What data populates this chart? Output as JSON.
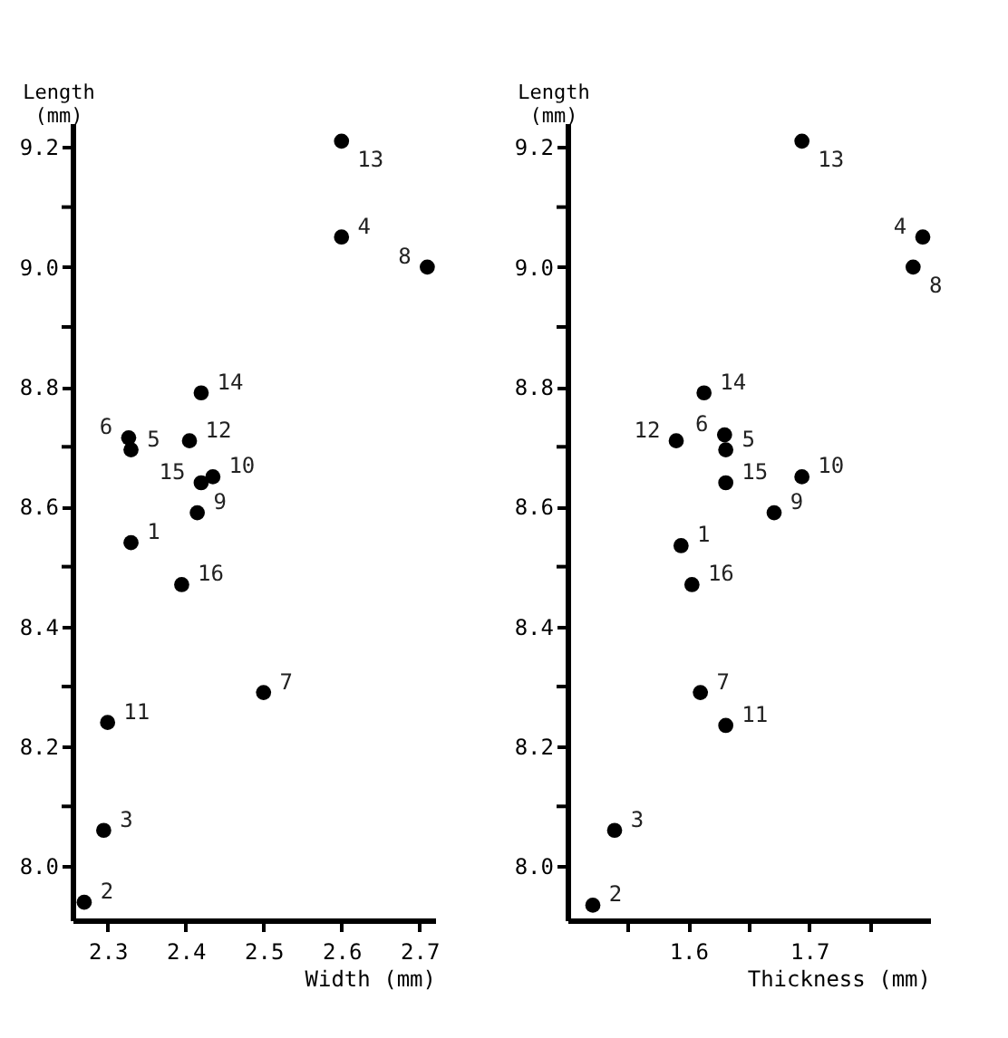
{
  "chart_data": [
    {
      "type": "scatter",
      "xlabel": "Width (mm)",
      "ylabel": "Length (mm)",
      "marker": "circle",
      "grid": false,
      "legend": false,
      "xlim": [
        2.255,
        2.72
      ],
      "xticks": [
        2.3,
        2.4,
        2.5,
        2.6,
        2.7
      ],
      "ylim": [
        7.91,
        9.24
      ],
      "yticks": [
        {
          "value": 8.0,
          "label": "8.0"
        },
        {
          "value": 8.1,
          "label": null
        },
        8.2,
        {
          "value": 8.3,
          "label": null
        },
        8.4,
        {
          "value": 8.5,
          "label": null
        },
        8.6,
        {
          "value": 8.7,
          "label": null
        },
        8.8,
        {
          "value": 8.9,
          "label": null
        },
        {
          "value": 9.0,
          "label": "9.0"
        },
        {
          "value": 9.1,
          "label": null
        },
        9.2
      ],
      "series": [
        {
          "color": "#000000",
          "x": [
            2.33,
            2.27,
            2.295,
            2.6,
            2.33,
            2.327,
            2.5,
            2.71,
            2.415,
            2.435,
            2.3,
            2.405,
            2.6,
            2.42,
            2.42,
            2.395
          ],
          "values": [
            8.54,
            7.94,
            8.06,
            9.05,
            8.695,
            8.715,
            8.29,
            9.0,
            8.59,
            8.65,
            8.24,
            8.71,
            9.21,
            8.79,
            8.64,
            8.47
          ]
        }
      ],
      "annotations": [
        {
          "text": "1",
          "x": 2.33,
          "y": 8.54
        },
        {
          "text": "2",
          "x": 2.27,
          "y": 7.94
        },
        {
          "text": "3",
          "x": 2.295,
          "y": 8.06
        },
        {
          "text": "4",
          "x": 2.6,
          "y": 9.05
        },
        {
          "text": "5",
          "x": 2.33,
          "y": 8.695
        },
        {
          "text": "6",
          "x": 2.327,
          "y": 8.715
        },
        {
          "text": "7",
          "x": 2.5,
          "y": 8.29
        },
        {
          "text": "8",
          "x": 2.71,
          "y": 9.0
        },
        {
          "text": "9",
          "x": 2.415,
          "y": 8.59
        },
        {
          "text": "10",
          "x": 2.435,
          "y": 8.65
        },
        {
          "text": "11",
          "x": 2.3,
          "y": 8.24
        },
        {
          "text": "12",
          "x": 2.405,
          "y": 8.71
        },
        {
          "text": "13",
          "x": 2.6,
          "y": 9.21
        },
        {
          "text": "14",
          "x": 2.42,
          "y": 8.79
        },
        {
          "text": "15",
          "x": 2.42,
          "y": 8.64
        },
        {
          "text": "16",
          "x": 2.395,
          "y": 8.47
        }
      ]
    },
    {
      "type": "scatter",
      "xlabel": "Thickness (mm)",
      "ylabel": "Length (mm)",
      "marker": "circle",
      "grid": false,
      "legend": false,
      "xlim": [
        1.5,
        1.8
      ],
      "xticks": [
        {
          "value": 1.55,
          "label": null
        },
        1.6,
        {
          "value": 1.65,
          "label": null
        },
        1.7,
        {
          "value": 1.75,
          "label": null
        }
      ],
      "ylim": [
        7.91,
        9.24
      ],
      "yticks": [
        {
          "value": 8.0,
          "label": "8.0"
        },
        {
          "value": 8.1,
          "label": null
        },
        8.2,
        {
          "value": 8.3,
          "label": null
        },
        8.4,
        {
          "value": 8.5,
          "label": null
        },
        8.6,
        {
          "value": 8.7,
          "label": null
        },
        8.8,
        {
          "value": 8.9,
          "label": null
        },
        {
          "value": 9.0,
          "label": "9.0"
        },
        {
          "value": 9.1,
          "label": null
        },
        9.2
      ],
      "series": [
        {
          "color": "#000000",
          "x": [
            1.594,
            1.521,
            1.539,
            1.794,
            1.631,
            1.63,
            1.61,
            1.786,
            1.671,
            1.694,
            1.631,
            1.59,
            1.694,
            1.613,
            1.631,
            1.603
          ],
          "values": [
            8.535,
            7.935,
            8.06,
            9.05,
            8.695,
            8.72,
            8.29,
            9.0,
            8.59,
            8.65,
            8.235,
            8.71,
            9.21,
            8.79,
            8.64,
            8.47
          ]
        }
      ],
      "annotations": [
        {
          "text": "1",
          "x": 1.594,
          "y": 8.535
        },
        {
          "text": "2",
          "x": 1.521,
          "y": 7.935
        },
        {
          "text": "3",
          "x": 1.539,
          "y": 8.06
        },
        {
          "text": "4",
          "x": 1.794,
          "y": 9.05
        },
        {
          "text": "5",
          "x": 1.631,
          "y": 8.695
        },
        {
          "text": "6",
          "x": 1.63,
          "y": 8.72
        },
        {
          "text": "7",
          "x": 1.61,
          "y": 8.29
        },
        {
          "text": "8",
          "x": 1.786,
          "y": 9.0
        },
        {
          "text": "9",
          "x": 1.671,
          "y": 8.59
        },
        {
          "text": "10",
          "x": 1.694,
          "y": 8.65
        },
        {
          "text": "11",
          "x": 1.631,
          "y": 8.235
        },
        {
          "text": "12",
          "x": 1.59,
          "y": 8.71
        },
        {
          "text": "13",
          "x": 1.694,
          "y": 9.21
        },
        {
          "text": "14",
          "x": 1.613,
          "y": 8.79
        },
        {
          "text": "15",
          "x": 1.631,
          "y": 8.64
        },
        {
          "text": "16",
          "x": 1.603,
          "y": 8.47
        }
      ]
    }
  ]
}
